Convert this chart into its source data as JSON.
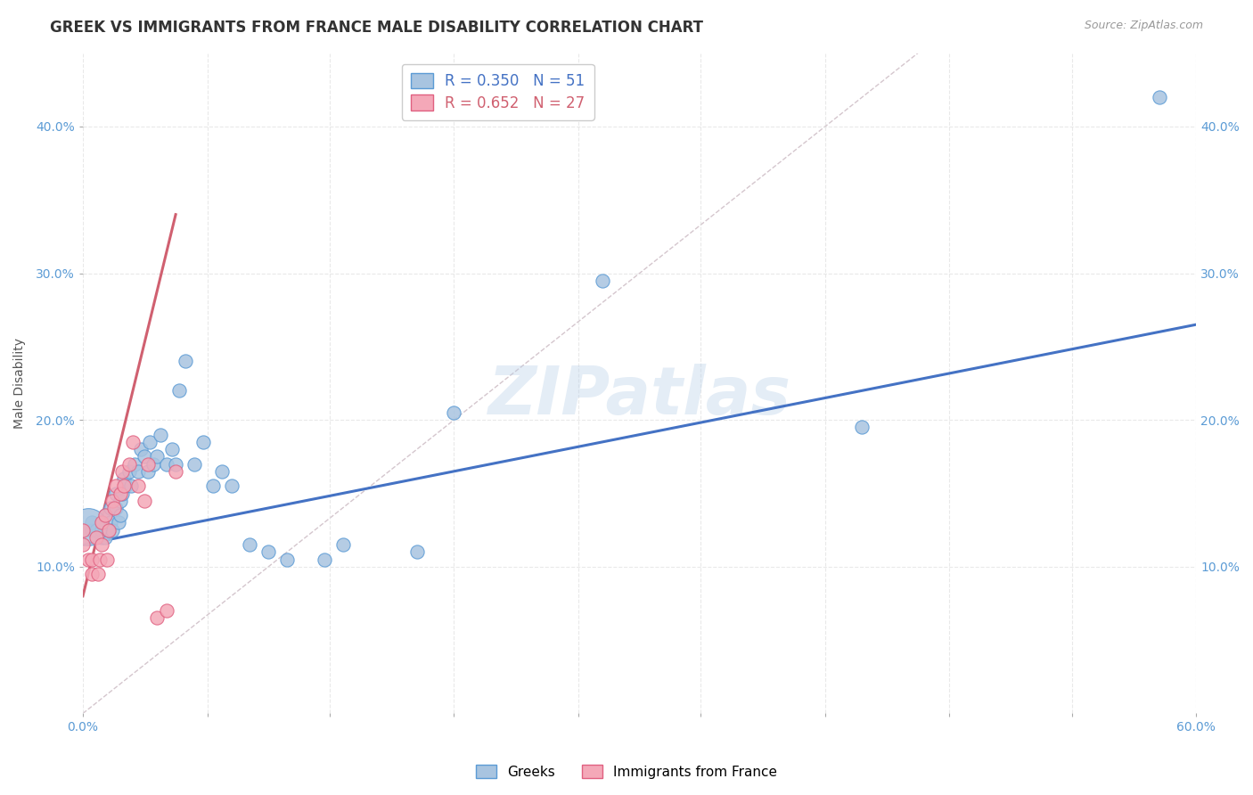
{
  "title": "GREEK VS IMMIGRANTS FROM FRANCE MALE DISABILITY CORRELATION CHART",
  "source": "Source: ZipAtlas.com",
  "ylabel": "Male Disability",
  "xlim": [
    0.0,
    0.6
  ],
  "ylim": [
    0.0,
    0.45
  ],
  "xtick_labels": [
    "0.0%",
    "",
    "",
    "",
    "",
    "",
    "",
    "",
    "",
    "60.0%"
  ],
  "xtick_vals": [
    0.0,
    0.067,
    0.133,
    0.2,
    0.267,
    0.333,
    0.4,
    0.467,
    0.533,
    0.6
  ],
  "ytick_labels": [
    "10.0%",
    "20.0%",
    "30.0%",
    "40.0%"
  ],
  "ytick_vals": [
    0.1,
    0.2,
    0.3,
    0.4
  ],
  "watermark": "ZIPatlas",
  "blue_scatter_x": [
    0.005,
    0.005,
    0.007,
    0.01,
    0.01,
    0.01,
    0.012,
    0.012,
    0.014,
    0.015,
    0.015,
    0.016,
    0.018,
    0.018,
    0.019,
    0.02,
    0.02,
    0.021,
    0.022,
    0.023,
    0.025,
    0.026,
    0.028,
    0.03,
    0.031,
    0.033,
    0.035,
    0.036,
    0.038,
    0.04,
    0.042,
    0.045,
    0.048,
    0.05,
    0.052,
    0.055,
    0.06,
    0.065,
    0.07,
    0.075,
    0.08,
    0.09,
    0.1,
    0.11,
    0.13,
    0.14,
    0.18,
    0.2,
    0.28,
    0.42,
    0.58
  ],
  "blue_scatter_y": [
    0.125,
    0.13,
    0.125,
    0.12,
    0.125,
    0.13,
    0.12,
    0.135,
    0.125,
    0.13,
    0.14,
    0.125,
    0.14,
    0.15,
    0.13,
    0.135,
    0.145,
    0.15,
    0.16,
    0.155,
    0.165,
    0.155,
    0.17,
    0.165,
    0.18,
    0.175,
    0.165,
    0.185,
    0.17,
    0.175,
    0.19,
    0.17,
    0.18,
    0.17,
    0.22,
    0.24,
    0.17,
    0.185,
    0.155,
    0.165,
    0.155,
    0.115,
    0.11,
    0.105,
    0.105,
    0.115,
    0.11,
    0.205,
    0.295,
    0.195,
    0.42
  ],
  "blue_scatter_sizes": [
    20,
    20,
    20,
    20,
    20,
    20,
    20,
    20,
    20,
    20,
    20,
    20,
    20,
    20,
    20,
    20,
    20,
    20,
    20,
    20,
    20,
    20,
    20,
    20,
    20,
    20,
    20,
    20,
    20,
    20,
    20,
    20,
    20,
    20,
    20,
    20,
    20,
    20,
    20,
    20,
    20,
    20,
    20,
    20,
    20,
    20,
    20,
    20,
    20,
    20,
    20
  ],
  "blue_large_x": [
    0.003
  ],
  "blue_large_y": [
    0.127
  ],
  "pink_scatter_x": [
    0.0,
    0.0,
    0.003,
    0.005,
    0.005,
    0.007,
    0.008,
    0.009,
    0.01,
    0.01,
    0.012,
    0.013,
    0.014,
    0.016,
    0.017,
    0.018,
    0.02,
    0.021,
    0.022,
    0.025,
    0.027,
    0.03,
    0.033,
    0.035,
    0.04,
    0.045,
    0.05
  ],
  "pink_scatter_y": [
    0.115,
    0.125,
    0.105,
    0.095,
    0.105,
    0.12,
    0.095,
    0.105,
    0.115,
    0.13,
    0.135,
    0.105,
    0.125,
    0.145,
    0.14,
    0.155,
    0.15,
    0.165,
    0.155,
    0.17,
    0.185,
    0.155,
    0.145,
    0.17,
    0.065,
    0.07,
    0.165
  ],
  "blue_line_x": [
    0.0,
    0.6
  ],
  "blue_line_y": [
    0.115,
    0.265
  ],
  "pink_line_x": [
    0.0,
    0.05
  ],
  "pink_line_y": [
    0.08,
    0.34
  ],
  "diagonal_line_x": [
    0.0,
    0.45
  ],
  "diagonal_line_y": [
    0.0,
    0.45
  ],
  "blue_color": "#5b9bd5",
  "pink_color": "#e06080",
  "blue_scatter_color": "#a8c4e0",
  "pink_scatter_color": "#f4a8b8",
  "blue_line_color": "#4472c4",
  "pink_line_color": "#d06070",
  "diagonal_color": "#d0c0c8",
  "background_color": "#ffffff",
  "grid_color": "#e0e0e0",
  "title_fontsize": 12,
  "label_fontsize": 10,
  "tick_fontsize": 10
}
